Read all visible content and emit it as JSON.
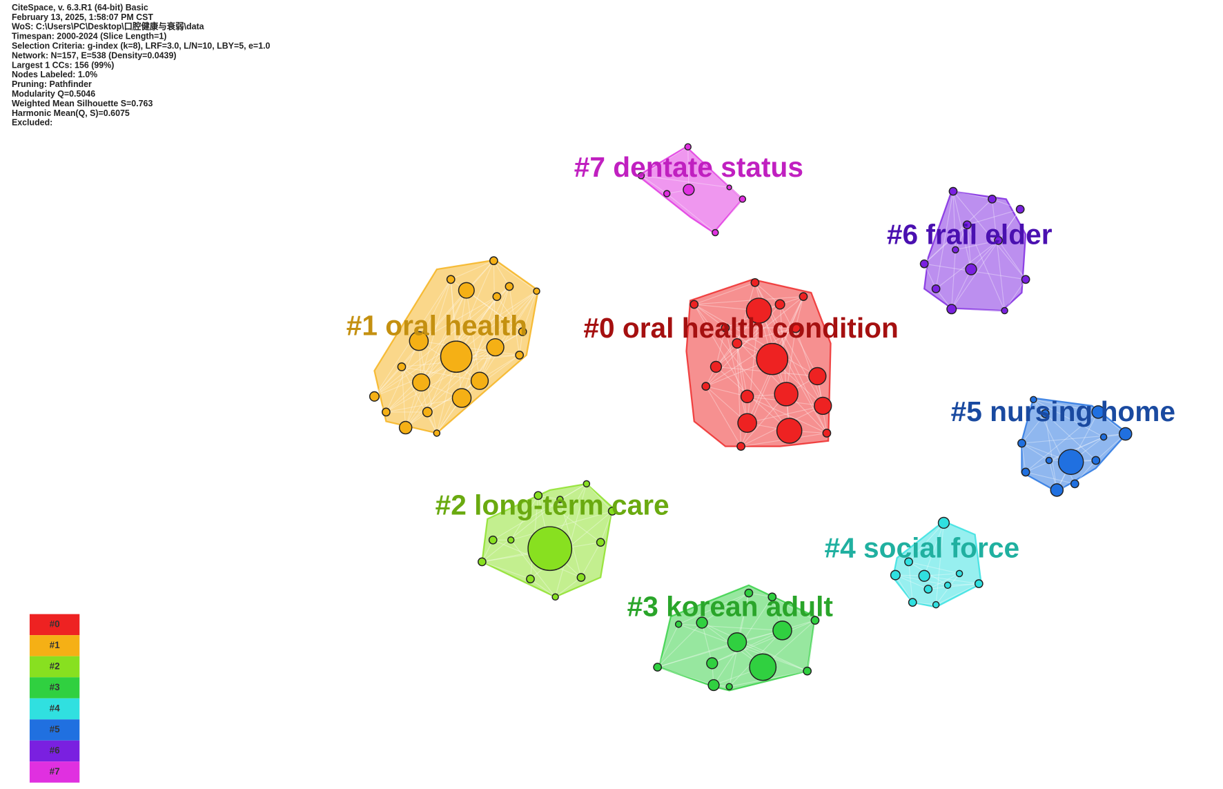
{
  "info": [
    "CiteSpace, v. 6.3.R1 (64-bit) Basic",
    "February 13, 2025, 1:58:07 PM CST",
    "WoS: C:\\Users\\PC\\Desktop\\口腔健康与衰弱\\data",
    "Timespan: 2000-2024 (Slice Length=1)",
    "Selection Criteria: g-index (k=8), LRF=3.0, L/N=10, LBY=5, e=1.0",
    "Network: N=157, E=538 (Density=0.0439)",
    "Largest 1 CCs: 156 (99%)",
    "Nodes Labeled: 1.0%",
    "Pruning: Pathfinder",
    "Modularity Q=0.5046",
    "Weighted Mean Silhouette S=0.763",
    "Harmonic Mean(Q, S)=0.6075",
    "Excluded:"
  ],
  "clusters": [
    {
      "label": "#0 oral health condition"
    },
    {
      "label": "#1 oral health"
    },
    {
      "label": "#2 long-term care"
    },
    {
      "label": "#3 korean adult"
    },
    {
      "label": "#4 social force"
    },
    {
      "label": "#5 nursing home"
    },
    {
      "label": "#6 frail elder"
    },
    {
      "label": "#7 dentate status"
    }
  ],
  "legend": [
    "#0",
    "#1",
    "#2",
    "#3",
    "#4",
    "#5",
    "#6",
    "#7"
  ]
}
